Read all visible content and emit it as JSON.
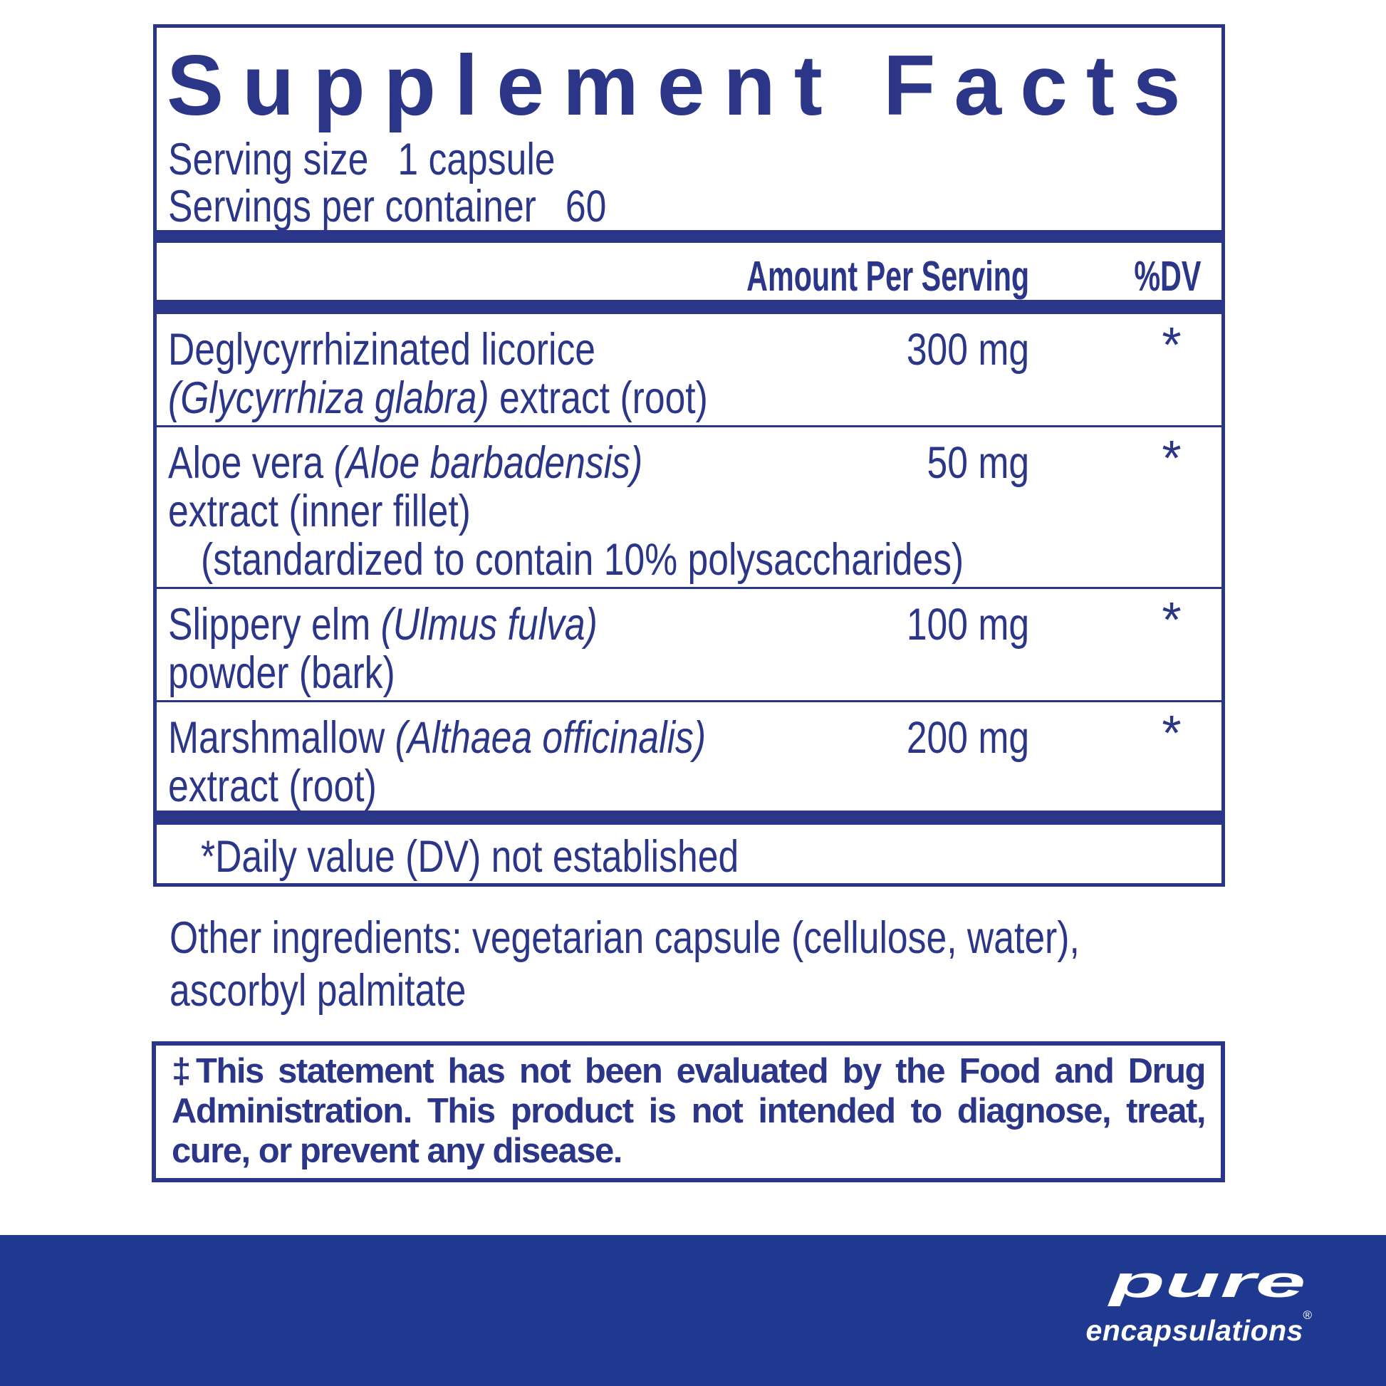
{
  "colors": {
    "navy": "#2c3689",
    "band_blue": "#1e398f",
    "background": "#ffffff",
    "logo_text": "#ffffff"
  },
  "supplement_panel": {
    "title": "Supplement Facts",
    "serving_size_label": "Serving size",
    "serving_size_value": "1 capsule",
    "servings_per_container_label": "Servings per container",
    "servings_per_container_value": "60",
    "column_headers": {
      "amount": "Amount Per Serving",
      "dv": "%DV"
    },
    "rows": [
      {
        "amount": "300 mg",
        "dv": "*",
        "lines": [
          {
            "indent": false,
            "segments": [
              {
                "text": "Deglycyrrhizinated licorice",
                "italic": false
              }
            ]
          },
          {
            "indent": false,
            "segments": [
              {
                "text": "(",
                "italic": true
              },
              {
                "text": "Glycyrrhiza glabra",
                "italic": true
              },
              {
                "text": ")",
                "italic": true
              },
              {
                "text": " extract (root)",
                "italic": false
              }
            ]
          }
        ]
      },
      {
        "amount": "50 mg",
        "dv": "*",
        "lines": [
          {
            "indent": false,
            "segments": [
              {
                "text": "Aloe vera ",
                "italic": false
              },
              {
                "text": "(Aloe barbadensis)",
                "italic": true
              }
            ]
          },
          {
            "indent": false,
            "segments": [
              {
                "text": "extract (inner fillet)",
                "italic": false
              }
            ]
          },
          {
            "indent": true,
            "segments": [
              {
                "text": "(standardized to contain 10% polysaccharides)",
                "italic": false
              }
            ]
          }
        ]
      },
      {
        "amount": "100 mg",
        "dv": "*",
        "lines": [
          {
            "indent": false,
            "segments": [
              {
                "text": "Slippery elm ",
                "italic": false
              },
              {
                "text": "(Ulmus fulva)",
                "italic": true
              }
            ]
          },
          {
            "indent": false,
            "segments": [
              {
                "text": "powder (bark)",
                "italic": false
              }
            ]
          }
        ]
      },
      {
        "amount": "200 mg",
        "dv": "*",
        "lines": [
          {
            "indent": false,
            "segments": [
              {
                "text": "Marshmallow ",
                "italic": false
              },
              {
                "text": "(Althaea officinalis)",
                "italic": true
              }
            ]
          },
          {
            "indent": false,
            "segments": [
              {
                "text": "extract (root)",
                "italic": false
              }
            ]
          }
        ]
      }
    ],
    "footnote": "*Daily value (DV) not established"
  },
  "other_ingredients": {
    "line1": "Other ingredients: vegetarian capsule (cellulose, water),",
    "line2": "ascorbyl palmitate"
  },
  "fda_disclaimer": "‡This statement has not been evaluated by the Food and Drug Administration. This product is not intended to diagnose, treat, cure, or prevent any disease.",
  "brand": {
    "name": "pure",
    "sub": "encapsulations",
    "registered_mark": "®"
  }
}
